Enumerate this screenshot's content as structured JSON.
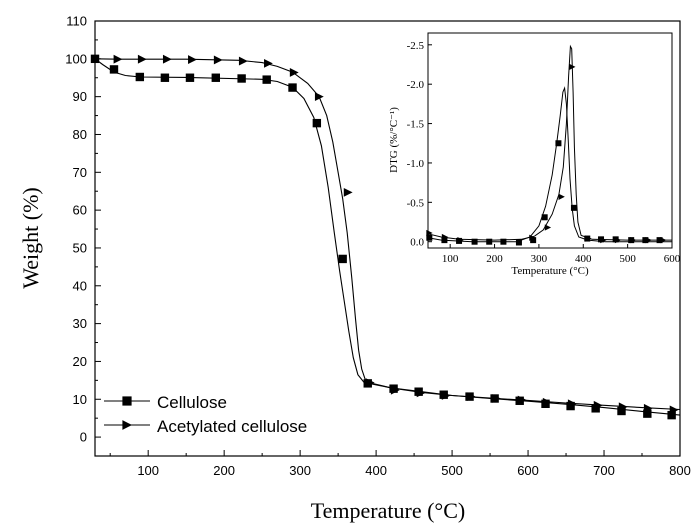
{
  "chart_data": [
    {
      "type": "line",
      "xlabel": "Temperature (°C)",
      "ylabel": "Weight (%)",
      "xlim": [
        30,
        800
      ],
      "ylim": [
        -5,
        110
      ],
      "xticks": [
        100,
        200,
        300,
        400,
        500,
        600,
        700,
        800
      ],
      "yticks": [
        0,
        10,
        20,
        30,
        40,
        50,
        60,
        70,
        80,
        90,
        100,
        110
      ],
      "legend": "bottom-left",
      "series": [
        {
          "name": "Cellulose",
          "marker": "square",
          "color": "#000000",
          "curve": [
            [
              30,
              100
            ],
            [
              40,
              98.5
            ],
            [
              55,
              96.5
            ],
            [
              70,
              95.6
            ],
            [
              90,
              95.2
            ],
            [
              150,
              95.1
            ],
            [
              250,
              94.6
            ],
            [
              270,
              94
            ],
            [
              290,
              92.5
            ],
            [
              305,
              89.5
            ],
            [
              318,
              84.5
            ],
            [
              328,
              77
            ],
            [
              337,
              66
            ],
            [
              345,
              54
            ],
            [
              352,
              44
            ],
            [
              358,
              36
            ],
            [
              364,
              28
            ],
            [
              370,
              21
            ],
            [
              376,
              16.5
            ],
            [
              384,
              14.5
            ],
            [
              395,
              14
            ],
            [
              420,
              13
            ],
            [
              460,
              11.8
            ],
            [
              500,
              11
            ],
            [
              550,
              10.2
            ],
            [
              600,
              9.5
            ],
            [
              650,
              8.7
            ],
            [
              700,
              7.8
            ],
            [
              750,
              6.8
            ],
            [
              800,
              5.8
            ]
          ],
          "markers": [
            [
              30,
              100
            ],
            [
              55,
              97.2
            ],
            [
              89,
              95.2
            ],
            [
              122,
              95
            ],
            [
              155,
              95
            ],
            [
              189,
              95
            ],
            [
              223,
              94.8
            ],
            [
              256,
              94.5
            ],
            [
              290,
              92.4
            ],
            [
              322,
              83
            ],
            [
              356,
              47.1
            ],
            [
              389,
              14.2
            ],
            [
              423,
              12.8
            ],
            [
              456,
              12
            ],
            [
              489,
              11.2
            ],
            [
              523,
              10.7
            ],
            [
              556,
              10.2
            ],
            [
              589,
              9.6
            ],
            [
              623,
              8.8
            ],
            [
              656,
              8.2
            ],
            [
              689,
              7.6
            ],
            [
              723,
              6.9
            ],
            [
              757,
              6.2
            ],
            [
              789,
              5.8
            ]
          ]
        },
        {
          "name": "Acetylated cellulose",
          "marker": "triangle-right",
          "color": "#000000",
          "curve": [
            [
              30,
              100
            ],
            [
              60,
              99.9
            ],
            [
              150,
              99.9
            ],
            [
              220,
              99.6
            ],
            [
              250,
              99
            ],
            [
              270,
              98
            ],
            [
              290,
              96.5
            ],
            [
              310,
              93.5
            ],
            [
              325,
              90
            ],
            [
              335,
              85
            ],
            [
              343,
              78
            ],
            [
              350,
              70
            ],
            [
              356,
              63
            ],
            [
              362,
              54
            ],
            [
              368,
              42
            ],
            [
              373,
              31
            ],
            [
              377,
              23
            ],
            [
              381,
              18
            ],
            [
              386,
              15
            ],
            [
              395,
              14.2
            ],
            [
              420,
              13
            ],
            [
              460,
              12
            ],
            [
              500,
              11
            ],
            [
              550,
              10.3
            ],
            [
              600,
              9.7
            ],
            [
              650,
              9
            ],
            [
              700,
              8.4
            ],
            [
              750,
              7.8
            ],
            [
              800,
              7.3
            ]
          ],
          "markers": [
            [
              60,
              99.9
            ],
            [
              92,
              99.9
            ],
            [
              125,
              99.9
            ],
            [
              158,
              99.8
            ],
            [
              192,
              99.7
            ],
            [
              225,
              99.4
            ],
            [
              258,
              98.8
            ],
            [
              292,
              96.4
            ],
            [
              325,
              90
            ],
            [
              363,
              64.7
            ],
            [
              392,
              14.4
            ],
            [
              425,
              12.4
            ],
            [
              459,
              11.7
            ],
            [
              492,
              11
            ],
            [
              525,
              10.7
            ],
            [
              558,
              10.2
            ],
            [
              592,
              9.8
            ],
            [
              625,
              9.2
            ],
            [
              658,
              8.8
            ],
            [
              692,
              8.4
            ],
            [
              725,
              8
            ],
            [
              758,
              7.6
            ],
            [
              792,
              7.2
            ]
          ]
        }
      ]
    },
    {
      "type": "line",
      "xlabel": "Temperature (°C)",
      "ylabel": "DTG (%/°C⁻¹)",
      "xlim": [
        50,
        600
      ],
      "ylim": [
        0.08,
        -2.65
      ],
      "xticks": [
        100,
        200,
        300,
        400,
        500,
        600
      ],
      "yticks": [
        "0.0",
        "-0.5",
        "-1.0",
        "-1.5",
        "-2.0",
        "-2.5"
      ],
      "ytick_values": [
        0,
        -0.5,
        -1.0,
        -1.5,
        -2.0,
        -2.5
      ],
      "series": [
        {
          "name": "Cellulose",
          "marker": "square",
          "curve": [
            [
              50,
              -0.05
            ],
            [
              80,
              -0.02
            ],
            [
              150,
              0
            ],
            [
              250,
              0
            ],
            [
              280,
              -0.06
            ],
            [
              300,
              -0.2
            ],
            [
              315,
              -0.45
            ],
            [
              330,
              -0.85
            ],
            [
              340,
              -1.25
            ],
            [
              348,
              -1.6
            ],
            [
              354,
              -1.9
            ],
            [
              358,
              -1.95
            ],
            [
              362,
              -1.75
            ],
            [
              366,
              -1.3
            ],
            [
              370,
              -0.8
            ],
            [
              375,
              -0.42
            ],
            [
              380,
              -0.2
            ],
            [
              390,
              -0.06
            ],
            [
              410,
              -0.02
            ],
            [
              450,
              0
            ],
            [
              600,
              0
            ]
          ],
          "markers": [
            [
              53,
              -0.05
            ],
            [
              87,
              -0.02
            ],
            [
              120,
              -0.01
            ],
            [
              155,
              0
            ],
            [
              188,
              0
            ],
            [
              220,
              0
            ],
            [
              255,
              0.01
            ],
            [
              287,
              -0.02
            ],
            [
              313,
              -0.31
            ],
            [
              344,
              -1.25
            ],
            [
              379,
              -0.43
            ],
            [
              409,
              -0.04
            ],
            [
              440,
              -0.03
            ],
            [
              473,
              -0.03
            ],
            [
              508,
              -0.02
            ],
            [
              540,
              -0.02
            ],
            [
              572,
              -0.02
            ]
          ]
        },
        {
          "name": "Acetylated cellulose",
          "marker": "triangle-right",
          "curve": [
            [
              50,
              -0.1
            ],
            [
              80,
              -0.06
            ],
            [
              120,
              -0.03
            ],
            [
              200,
              -0.02
            ],
            [
              260,
              -0.03
            ],
            [
              290,
              -0.07
            ],
            [
              310,
              -0.15
            ],
            [
              330,
              -0.35
            ],
            [
              345,
              -0.6
            ],
            [
              355,
              -0.95
            ],
            [
              362,
              -1.5
            ],
            [
              367,
              -2.1
            ],
            [
              371,
              -2.48
            ],
            [
              374,
              -2.45
            ],
            [
              377,
              -1.9
            ],
            [
              380,
              -1.2
            ],
            [
              384,
              -0.6
            ],
            [
              388,
              -0.25
            ],
            [
              395,
              -0.08
            ],
            [
              420,
              -0.03
            ],
            [
              500,
              -0.02
            ],
            [
              600,
              -0.02
            ]
          ],
          "markers": [
            [
              53,
              -0.11
            ],
            [
              88,
              -0.06
            ],
            [
              123,
              -0.02
            ],
            [
              285,
              -0.05
            ],
            [
              320,
              -0.18
            ],
            [
              351,
              -0.57
            ],
            [
              375,
              -2.22
            ],
            [
              411,
              -0.04
            ],
            [
              445,
              -0.02
            ],
            [
              478,
              -0.02
            ],
            [
              512,
              -0.02
            ],
            [
              547,
              -0.02
            ],
            [
              580,
              -0.02
            ]
          ]
        }
      ]
    }
  ]
}
